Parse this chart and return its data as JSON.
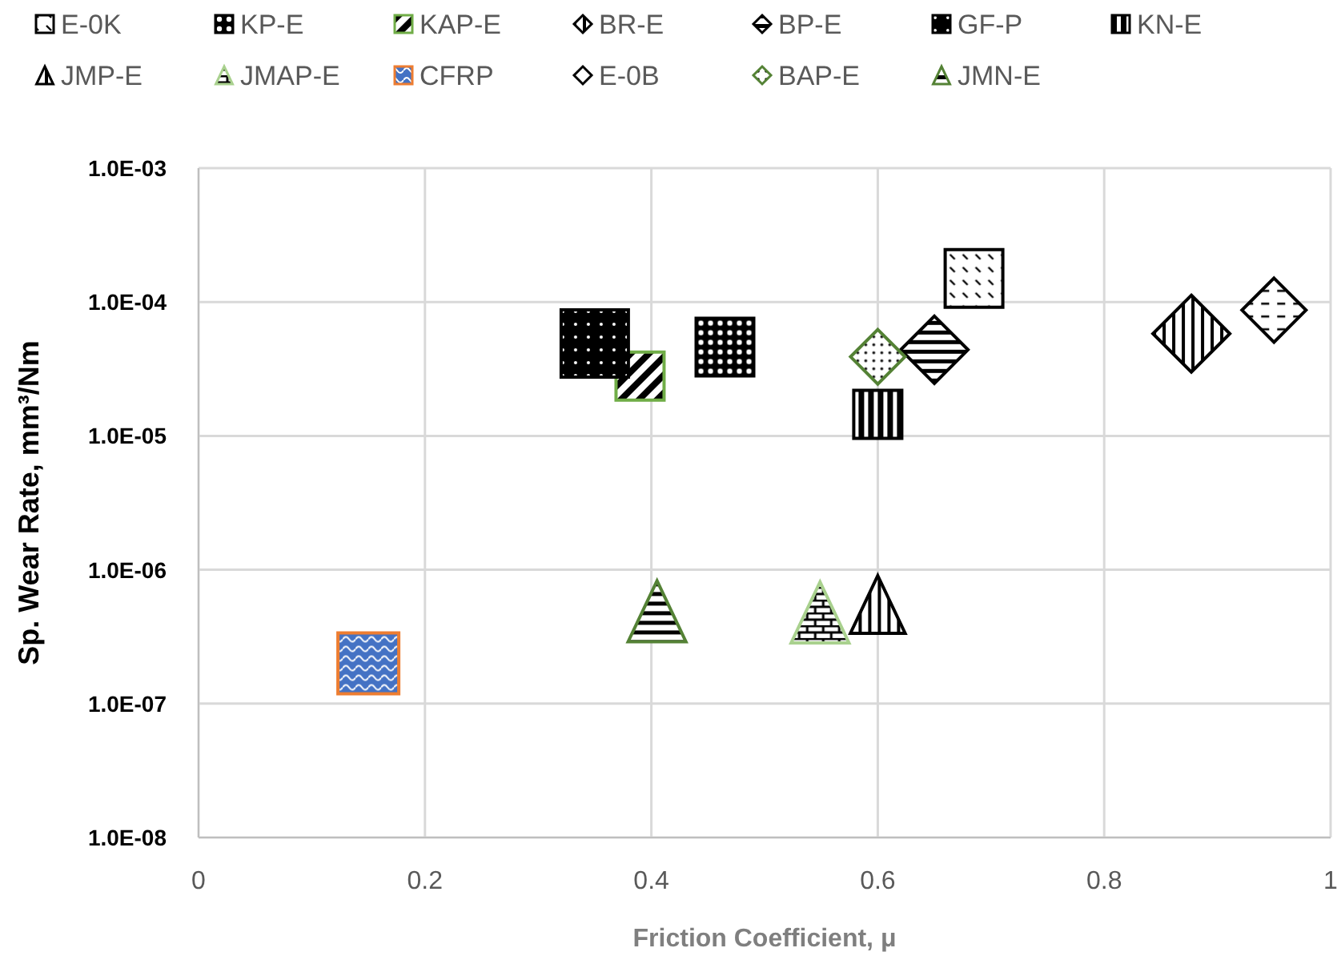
{
  "chart_data": {
    "type": "scatter",
    "xlabel": "Friction Coefficient, μ",
    "ylabel": "Sp. Wear Rate, mm³/Nm",
    "log": "y",
    "grid": true,
    "legend": "top",
    "xlim": [
      0,
      1
    ],
    "xticks": [
      0,
      0.2,
      0.4,
      0.6,
      0.8,
      1
    ],
    "ylim": [
      1e-08,
      0.001
    ],
    "yticks": [
      {
        "value": 1e-08,
        "label": "1.0E-08"
      },
      {
        "value": 1e-07,
        "label": "1.0E-07"
      },
      {
        "value": 1e-06,
        "label": "1.0E-06"
      },
      {
        "value": 1e-05,
        "label": "1.0E-05"
      },
      {
        "value": 0.0001,
        "label": "1.0E-04"
      },
      {
        "value": 0.001,
        "label": "1.0E-03"
      }
    ],
    "series": [
      {
        "name": "E-0K",
        "color": "#000000",
        "marker": "square",
        "x": [
          0.685
        ],
        "values": [
          0.00015
        ]
      },
      {
        "name": "KP-E",
        "color": "#000000",
        "marker": "square",
        "x": [
          0.465
        ],
        "values": [
          4.6e-05
        ]
      },
      {
        "name": "KAP-E",
        "color": "#70ad47",
        "marker": "square",
        "x": [
          0.39
        ],
        "values": [
          2.8e-05
        ]
      },
      {
        "name": "BR-E",
        "color": "#000000",
        "marker": "diamond",
        "x": [
          0.877
        ],
        "values": [
          5.8e-05
        ]
      },
      {
        "name": "BP-E",
        "color": "#000000",
        "marker": "diamond",
        "x": [
          0.65
        ],
        "values": [
          4.4e-05
        ]
      },
      {
        "name": "GF-P",
        "color": "#000000",
        "marker": "square",
        "x": [
          0.35
        ],
        "values": [
          4.9e-05
        ]
      },
      {
        "name": "KN-E",
        "color": "#000000",
        "marker": "square",
        "x": [
          0.6
        ],
        "values": [
          1.45e-05
        ]
      },
      {
        "name": "JMP-E",
        "color": "#000000",
        "marker": "triangle",
        "x": [
          0.6
        ],
        "values": [
          5.5e-07
        ]
      },
      {
        "name": "JMAP-E",
        "color": "#a9d18e",
        "marker": "triangle",
        "x": [
          0.549
        ],
        "values": [
          4.8e-07
        ]
      },
      {
        "name": "CFRP",
        "color": "#ed7d31",
        "marker": "square",
        "x": [
          0.15
        ],
        "values": [
          2e-07
        ]
      },
      {
        "name": "E-0B",
        "color": "#000000",
        "marker": "diamond",
        "x": [
          0.95
        ],
        "values": [
          8.7e-05
        ]
      },
      {
        "name": "BAP-E",
        "color": "#548235",
        "marker": "diamond",
        "x": [
          0.6
        ],
        "values": [
          3.9e-05
        ]
      },
      {
        "name": "JMN-E",
        "color": "#548235",
        "marker": "triangle",
        "x": [
          0.405
        ],
        "values": [
          4.9e-07
        ]
      }
    ]
  }
}
